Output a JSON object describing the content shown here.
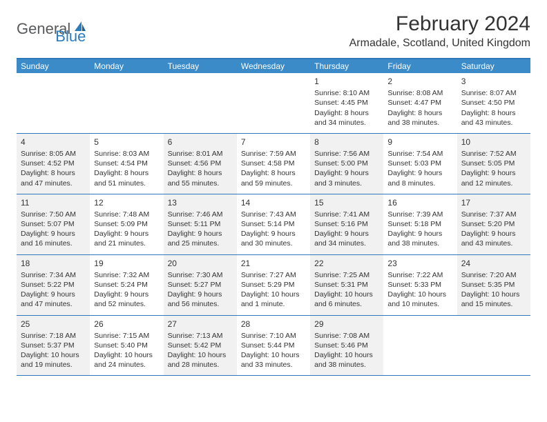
{
  "brand": {
    "word1": "General",
    "word2": "Blue"
  },
  "title": "February 2024",
  "location": "Armadale, Scotland, United Kingdom",
  "colors": {
    "header_bar": "#3b8bc9",
    "border": "#2b77ba",
    "shade": "#f1f1f1",
    "text": "#333333",
    "brand_gray": "#58595b",
    "brand_blue": "#2b7bbf"
  },
  "daynames": [
    "Sunday",
    "Monday",
    "Tuesday",
    "Wednesday",
    "Thursday",
    "Friday",
    "Saturday"
  ],
  "weeks": [
    [
      {
        "shade": false
      },
      {
        "shade": false
      },
      {
        "shade": false
      },
      {
        "shade": false
      },
      {
        "shade": false,
        "num": "1",
        "sunrise": "Sunrise: 8:10 AM",
        "sunset": "Sunset: 4:45 PM",
        "day1": "Daylight: 8 hours",
        "day2": "and 34 minutes."
      },
      {
        "shade": false,
        "num": "2",
        "sunrise": "Sunrise: 8:08 AM",
        "sunset": "Sunset: 4:47 PM",
        "day1": "Daylight: 8 hours",
        "day2": "and 38 minutes."
      },
      {
        "shade": false,
        "num": "3",
        "sunrise": "Sunrise: 8:07 AM",
        "sunset": "Sunset: 4:50 PM",
        "day1": "Daylight: 8 hours",
        "day2": "and 43 minutes."
      }
    ],
    [
      {
        "shade": true,
        "num": "4",
        "sunrise": "Sunrise: 8:05 AM",
        "sunset": "Sunset: 4:52 PM",
        "day1": "Daylight: 8 hours",
        "day2": "and 47 minutes."
      },
      {
        "shade": false,
        "num": "5",
        "sunrise": "Sunrise: 8:03 AM",
        "sunset": "Sunset: 4:54 PM",
        "day1": "Daylight: 8 hours",
        "day2": "and 51 minutes."
      },
      {
        "shade": true,
        "num": "6",
        "sunrise": "Sunrise: 8:01 AM",
        "sunset": "Sunset: 4:56 PM",
        "day1": "Daylight: 8 hours",
        "day2": "and 55 minutes."
      },
      {
        "shade": false,
        "num": "7",
        "sunrise": "Sunrise: 7:59 AM",
        "sunset": "Sunset: 4:58 PM",
        "day1": "Daylight: 8 hours",
        "day2": "and 59 minutes."
      },
      {
        "shade": true,
        "num": "8",
        "sunrise": "Sunrise: 7:56 AM",
        "sunset": "Sunset: 5:00 PM",
        "day1": "Daylight: 9 hours",
        "day2": "and 3 minutes."
      },
      {
        "shade": false,
        "num": "9",
        "sunrise": "Sunrise: 7:54 AM",
        "sunset": "Sunset: 5:03 PM",
        "day1": "Daylight: 9 hours",
        "day2": "and 8 minutes."
      },
      {
        "shade": true,
        "num": "10",
        "sunrise": "Sunrise: 7:52 AM",
        "sunset": "Sunset: 5:05 PM",
        "day1": "Daylight: 9 hours",
        "day2": "and 12 minutes."
      }
    ],
    [
      {
        "shade": true,
        "num": "11",
        "sunrise": "Sunrise: 7:50 AM",
        "sunset": "Sunset: 5:07 PM",
        "day1": "Daylight: 9 hours",
        "day2": "and 16 minutes."
      },
      {
        "shade": false,
        "num": "12",
        "sunrise": "Sunrise: 7:48 AM",
        "sunset": "Sunset: 5:09 PM",
        "day1": "Daylight: 9 hours",
        "day2": "and 21 minutes."
      },
      {
        "shade": true,
        "num": "13",
        "sunrise": "Sunrise: 7:46 AM",
        "sunset": "Sunset: 5:11 PM",
        "day1": "Daylight: 9 hours",
        "day2": "and 25 minutes."
      },
      {
        "shade": false,
        "num": "14",
        "sunrise": "Sunrise: 7:43 AM",
        "sunset": "Sunset: 5:14 PM",
        "day1": "Daylight: 9 hours",
        "day2": "and 30 minutes."
      },
      {
        "shade": true,
        "num": "15",
        "sunrise": "Sunrise: 7:41 AM",
        "sunset": "Sunset: 5:16 PM",
        "day1": "Daylight: 9 hours",
        "day2": "and 34 minutes."
      },
      {
        "shade": false,
        "num": "16",
        "sunrise": "Sunrise: 7:39 AM",
        "sunset": "Sunset: 5:18 PM",
        "day1": "Daylight: 9 hours",
        "day2": "and 38 minutes."
      },
      {
        "shade": true,
        "num": "17",
        "sunrise": "Sunrise: 7:37 AM",
        "sunset": "Sunset: 5:20 PM",
        "day1": "Daylight: 9 hours",
        "day2": "and 43 minutes."
      }
    ],
    [
      {
        "shade": true,
        "num": "18",
        "sunrise": "Sunrise: 7:34 AM",
        "sunset": "Sunset: 5:22 PM",
        "day1": "Daylight: 9 hours",
        "day2": "and 47 minutes."
      },
      {
        "shade": false,
        "num": "19",
        "sunrise": "Sunrise: 7:32 AM",
        "sunset": "Sunset: 5:24 PM",
        "day1": "Daylight: 9 hours",
        "day2": "and 52 minutes."
      },
      {
        "shade": true,
        "num": "20",
        "sunrise": "Sunrise: 7:30 AM",
        "sunset": "Sunset: 5:27 PM",
        "day1": "Daylight: 9 hours",
        "day2": "and 56 minutes."
      },
      {
        "shade": false,
        "num": "21",
        "sunrise": "Sunrise: 7:27 AM",
        "sunset": "Sunset: 5:29 PM",
        "day1": "Daylight: 10 hours",
        "day2": "and 1 minute."
      },
      {
        "shade": true,
        "num": "22",
        "sunrise": "Sunrise: 7:25 AM",
        "sunset": "Sunset: 5:31 PM",
        "day1": "Daylight: 10 hours",
        "day2": "and 6 minutes."
      },
      {
        "shade": false,
        "num": "23",
        "sunrise": "Sunrise: 7:22 AM",
        "sunset": "Sunset: 5:33 PM",
        "day1": "Daylight: 10 hours",
        "day2": "and 10 minutes."
      },
      {
        "shade": true,
        "num": "24",
        "sunrise": "Sunrise: 7:20 AM",
        "sunset": "Sunset: 5:35 PM",
        "day1": "Daylight: 10 hours",
        "day2": "and 15 minutes."
      }
    ],
    [
      {
        "shade": true,
        "num": "25",
        "sunrise": "Sunrise: 7:18 AM",
        "sunset": "Sunset: 5:37 PM",
        "day1": "Daylight: 10 hours",
        "day2": "and 19 minutes."
      },
      {
        "shade": false,
        "num": "26",
        "sunrise": "Sunrise: 7:15 AM",
        "sunset": "Sunset: 5:40 PM",
        "day1": "Daylight: 10 hours",
        "day2": "and 24 minutes."
      },
      {
        "shade": true,
        "num": "27",
        "sunrise": "Sunrise: 7:13 AM",
        "sunset": "Sunset: 5:42 PM",
        "day1": "Daylight: 10 hours",
        "day2": "and 28 minutes."
      },
      {
        "shade": false,
        "num": "28",
        "sunrise": "Sunrise: 7:10 AM",
        "sunset": "Sunset: 5:44 PM",
        "day1": "Daylight: 10 hours",
        "day2": "and 33 minutes."
      },
      {
        "shade": true,
        "num": "29",
        "sunrise": "Sunrise: 7:08 AM",
        "sunset": "Sunset: 5:46 PM",
        "day1": "Daylight: 10 hours",
        "day2": "and 38 minutes."
      },
      {
        "shade": false
      },
      {
        "shade": false
      }
    ]
  ]
}
